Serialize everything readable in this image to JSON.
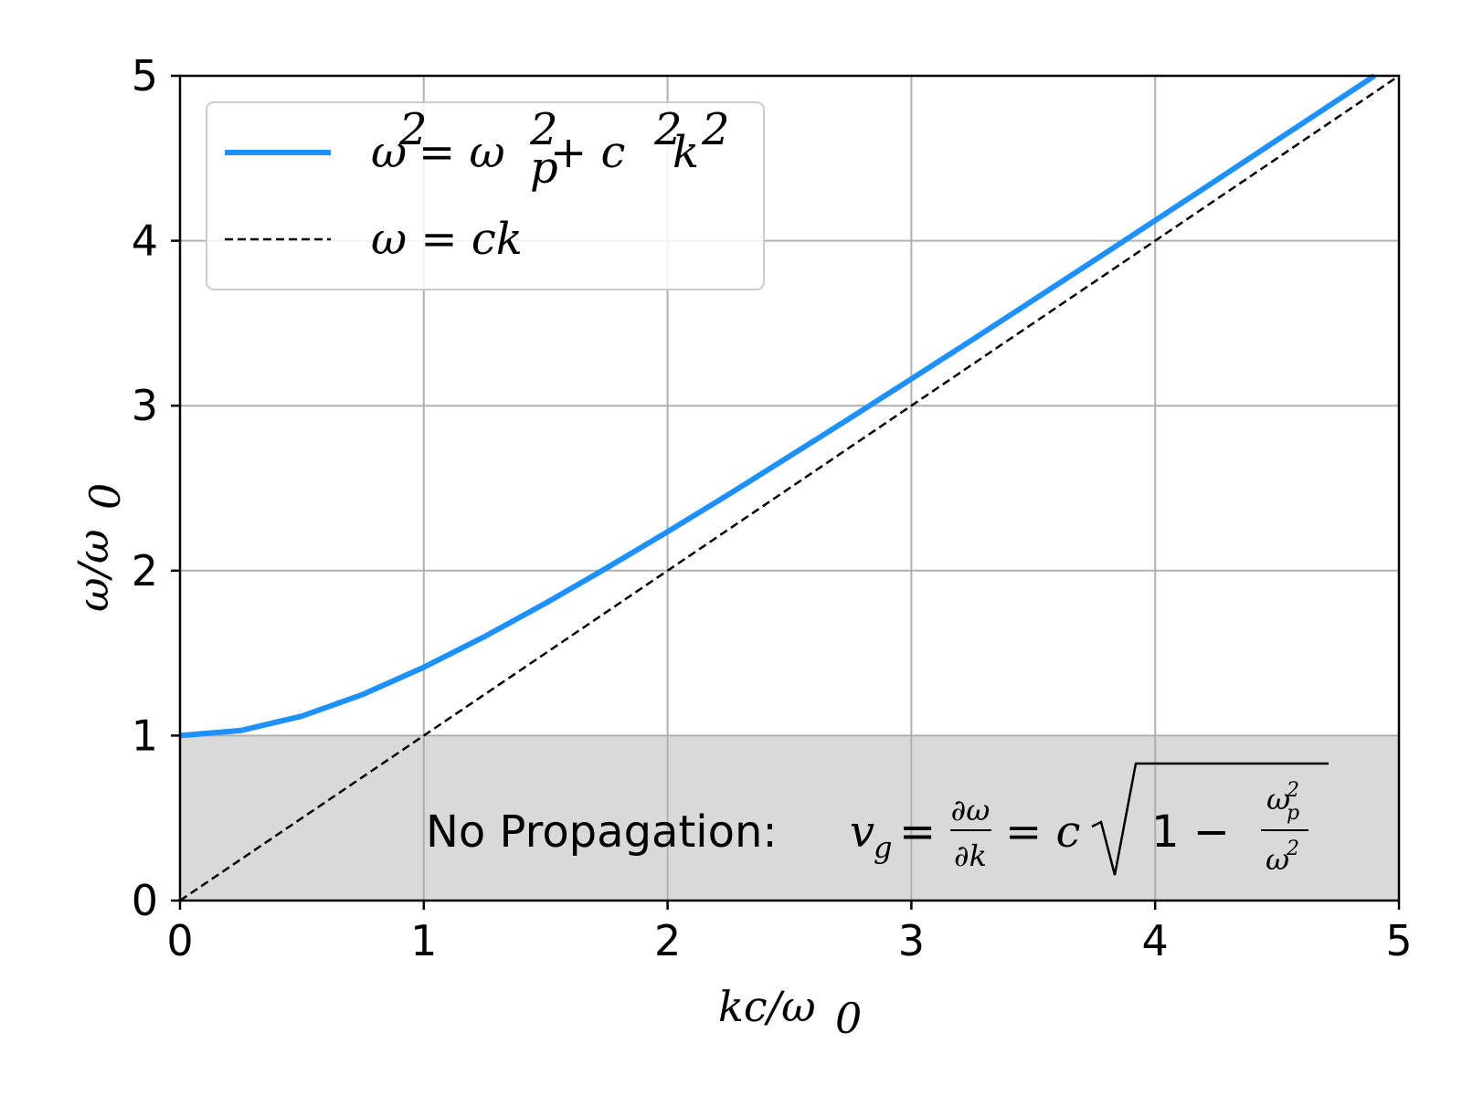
{
  "chart_data": {
    "type": "line",
    "xlabel_main": "kc/ω",
    "xlabel_sub": "0",
    "ylabel_main": "ω/ω",
    "ylabel_sub": "0",
    "xlim": [
      0,
      5
    ],
    "ylim": [
      0,
      5
    ],
    "xticks": [
      "0",
      "1",
      "2",
      "3",
      "4",
      "5"
    ],
    "yticks": [
      "0",
      "1",
      "2",
      "3",
      "4",
      "5"
    ],
    "grid": true,
    "legend_position": "upper-left",
    "colors": {
      "dispersion": "#1e90ff",
      "light_line": "#000000",
      "shaded_region": "#d9d9d9",
      "grid": "#b0b0b0"
    },
    "shaded_region": {
      "y_from": 0,
      "y_to": 1
    },
    "series": [
      {
        "name": "ω² = ωp² + c²k²",
        "style": "solid",
        "x": [
          0,
          0.25,
          0.5,
          0.75,
          1.0,
          1.25,
          1.5,
          1.75,
          2.0,
          2.25,
          2.5,
          2.75,
          3.0,
          3.25,
          3.5,
          3.75,
          4.0,
          4.25,
          4.5,
          4.75,
          4.9
        ],
        "y": [
          1.0,
          1.031,
          1.118,
          1.25,
          1.414,
          1.601,
          1.803,
          2.016,
          2.236,
          2.462,
          2.693,
          2.926,
          3.162,
          3.4,
          3.64,
          3.881,
          4.123,
          4.366,
          4.61,
          4.854,
          5.0
        ]
      },
      {
        "name": "ω = ck",
        "style": "dashed",
        "x": [
          0,
          5
        ],
        "y": [
          0,
          5
        ]
      }
    ],
    "annotation": {
      "text": "No Propagation: ",
      "vg": "v",
      "vg_sub": "g",
      "eq": "=",
      "frac1_num": "∂ω",
      "frac1_den": "∂k",
      "eq2": "= c",
      "one_minus": "1 −",
      "frac2_num": "ω",
      "frac2_num_sup": "2",
      "frac2_num_sub": "p",
      "frac2_den": "ω",
      "frac2_den_sup": "2"
    },
    "legend": {
      "entry1": {
        "w": "ω",
        "sup1": "2",
        "eq": " = ω",
        "sub_p": "p",
        "sup2": "2",
        "plus": " + c",
        "sup3": "2",
        "k": "k",
        "sup4": "2"
      },
      "entry2": {
        "text": "ω = ck"
      }
    }
  }
}
